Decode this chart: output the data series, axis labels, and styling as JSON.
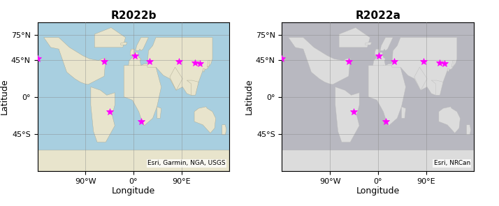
{
  "title1": "R2022b",
  "title2": "R2022a",
  "xlabel": "Longitude",
  "ylabel": "Latitude",
  "points": [
    [
      -180,
      46
    ],
    [
      -55,
      43
    ],
    [
      -45,
      -18
    ],
    [
      2,
      50
    ],
    [
      30,
      43
    ],
    [
      15,
      -30
    ],
    [
      85,
      43
    ],
    [
      115,
      41
    ],
    [
      125,
      40
    ]
  ],
  "marker_color": "#FF00FF",
  "marker": "*",
  "marker_size": 7,
  "lon_ticks": [
    -90,
    0,
    90
  ],
  "lat_ticks": [
    75,
    45,
    0,
    -45
  ],
  "lon_labels": [
    "90°W",
    "0°",
    "90°E"
  ],
  "lat_labels": [
    "75°N",
    "45°N",
    "0°",
    "45°S"
  ],
  "xlim": [
    -180,
    180
  ],
  "ylim": [
    -90,
    90
  ],
  "attribution1": "Esri, Garmin, NGA, USGS",
  "attribution2": "Esri, NRCan",
  "map1_ocean": "#a8cfe0",
  "map1_land": "#e8e4cc",
  "map1_land_high": "#c8d8b0",
  "map1_ocean_deep": "#88b8d8",
  "map2_ocean": "#b8b8c0",
  "map2_land": "#dcdcdc",
  "map2_bg": "#b8b8c0",
  "grid_color": "#888888",
  "title_fontsize": 11,
  "label_fontsize": 9,
  "tick_fontsize": 8,
  "attrib_fontsize": 6.5
}
